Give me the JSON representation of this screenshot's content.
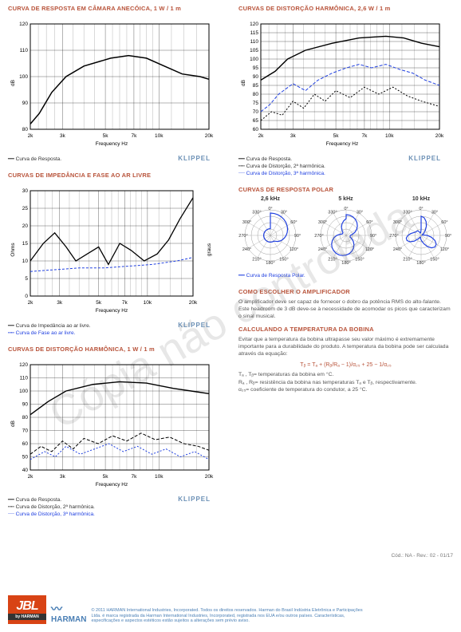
{
  "charts": {
    "c1": {
      "title": "CURVA DE RESPOSTA EM CÂMARA ANECÓICA, 1 W / 1 m",
      "ylabel": "dB",
      "xlabel": "Frequency Hz",
      "ymin": 80,
      "ymax": 120,
      "ystep": 10,
      "xticks": [
        "2k",
        "3k",
        "5k",
        "7k",
        "10k",
        "20k"
      ],
      "legend": [
        "Curva de Resposta."
      ],
      "brand": "KLIPPEL",
      "series": [
        {
          "color": "#000",
          "width": 1.5,
          "pts": [
            [
              0,
              82
            ],
            [
              5,
              86
            ],
            [
              12,
              94
            ],
            [
              20,
              100
            ],
            [
              30,
              104
            ],
            [
              45,
              107
            ],
            [
              55,
              108
            ],
            [
              65,
              107
            ],
            [
              75,
              104
            ],
            [
              85,
              101
            ],
            [
              95,
              100
            ],
            [
              100,
              99
            ]
          ]
        }
      ]
    },
    "c2": {
      "title": "CURVAS DE DISTORÇÃO HARMÔNICA, 2,6 W / 1 m",
      "ylabel": "dB",
      "xlabel": "Frequency Hz",
      "ymin": 60,
      "ymax": 120,
      "ystep": 5,
      "xticks": [
        "2k",
        "3k",
        "5k",
        "7k",
        "10k",
        "20k"
      ],
      "legend": [
        "Curva de Resposta.",
        "Curva de Distorção, 2ª harmônica.",
        "Curva de Distorção, 3ª harmônica."
      ],
      "brand": "KLIPPEL",
      "series": [
        {
          "color": "#000",
          "width": 1.4,
          "pts": [
            [
              0,
              88
            ],
            [
              8,
              93
            ],
            [
              15,
              100
            ],
            [
              25,
              105
            ],
            [
              40,
              109
            ],
            [
              55,
              112
            ],
            [
              70,
              113
            ],
            [
              80,
              112
            ],
            [
              90,
              109
            ],
            [
              100,
              107
            ]
          ]
        },
        {
          "color": "#2040e0",
          "width": 1,
          "dash": "4,2",
          "pts": [
            [
              0,
              70
            ],
            [
              5,
              74
            ],
            [
              10,
              80
            ],
            [
              18,
              86
            ],
            [
              25,
              82
            ],
            [
              32,
              88
            ],
            [
              40,
              92
            ],
            [
              48,
              95
            ],
            [
              55,
              97
            ],
            [
              62,
              95
            ],
            [
              70,
              97
            ],
            [
              78,
              94
            ],
            [
              85,
              92
            ],
            [
              92,
              88
            ],
            [
              100,
              85
            ]
          ]
        },
        {
          "color": "#000",
          "width": 1,
          "dash": "2,2",
          "pts": [
            [
              0,
              65
            ],
            [
              6,
              70
            ],
            [
              12,
              68
            ],
            [
              18,
              76
            ],
            [
              24,
              72
            ],
            [
              30,
              80
            ],
            [
              36,
              76
            ],
            [
              42,
              82
            ],
            [
              50,
              78
            ],
            [
              58,
              84
            ],
            [
              66,
              80
            ],
            [
              74,
              84
            ],
            [
              82,
              79
            ],
            [
              90,
              76
            ],
            [
              100,
              73
            ]
          ]
        }
      ]
    },
    "c3": {
      "title": "CURVAS DE IMPEDÂNCIA E FASE AO AR LIVRE",
      "ylabel": "Ohms",
      "ylabel2": "graus",
      "xlabel": "Frequency Hz",
      "ymin": 0,
      "ymax": 30,
      "ystep": 5,
      "y2min": -20,
      "y2max": 20,
      "xticks": [
        "2k",
        "3k",
        "5k",
        "7k",
        "10k",
        "20k"
      ],
      "legend": [
        "Curva de Impedância ao ar livre.",
        "Curva de Fase ao ar livre."
      ],
      "brand": "KLIPPEL",
      "series": [
        {
          "color": "#000",
          "width": 1.3,
          "pts": [
            [
              0,
              10
            ],
            [
              8,
              15
            ],
            [
              15,
              18
            ],
            [
              22,
              14
            ],
            [
              28,
              10
            ],
            [
              35,
              12
            ],
            [
              42,
              14
            ],
            [
              48,
              9
            ],
            [
              55,
              15
            ],
            [
              62,
              13
            ],
            [
              70,
              10
            ],
            [
              78,
              12
            ],
            [
              85,
              16
            ],
            [
              92,
              22
            ],
            [
              100,
              28
            ]
          ]
        },
        {
          "color": "#2040e0",
          "width": 1,
          "dash": "3,2",
          "pts": [
            [
              0,
              7
            ],
            [
              15,
              7.5
            ],
            [
              30,
              8
            ],
            [
              45,
              8
            ],
            [
              60,
              8.5
            ],
            [
              75,
              9
            ],
            [
              90,
              10
            ],
            [
              100,
              11
            ]
          ]
        }
      ]
    },
    "c4": {
      "title": "CURVAS DE DISTORÇÃO HARMÔNICA, 1 W / 1 m",
      "ylabel": "dB",
      "xlabel": "Frequency Hz",
      "ymin": 40,
      "ymax": 120,
      "ystep": 10,
      "xticks": [
        "2k",
        "3k",
        "5k",
        "7k",
        "10k",
        "20k"
      ],
      "legend": [
        "Curva de Resposta.",
        "Curva de Distorção, 2ª harmônica.",
        "Curva de Distorção, 3ª harmônica."
      ],
      "brand": "KLIPPEL",
      "series": [
        {
          "color": "#000",
          "width": 1.4,
          "pts": [
            [
              0,
              82
            ],
            [
              10,
              92
            ],
            [
              20,
              100
            ],
            [
              35,
              105
            ],
            [
              50,
              107
            ],
            [
              65,
              106
            ],
            [
              80,
              102
            ],
            [
              90,
              100
            ],
            [
              100,
              98
            ]
          ]
        },
        {
          "color": "#000",
          "width": 1,
          "dash": "4,2",
          "pts": [
            [
              0,
              52
            ],
            [
              6,
              58
            ],
            [
              12,
              54
            ],
            [
              18,
              62
            ],
            [
              24,
              56
            ],
            [
              30,
              64
            ],
            [
              38,
              60
            ],
            [
              46,
              66
            ],
            [
              54,
              62
            ],
            [
              62,
              68
            ],
            [
              70,
              63
            ],
            [
              78,
              65
            ],
            [
              86,
              60
            ],
            [
              94,
              58
            ],
            [
              100,
              55
            ]
          ]
        },
        {
          "color": "#2040e0",
          "width": 1,
          "dash": "2,2",
          "pts": [
            [
              0,
              48
            ],
            [
              8,
              54
            ],
            [
              14,
              50
            ],
            [
              20,
              58
            ],
            [
              28,
              52
            ],
            [
              36,
              56
            ],
            [
              44,
              60
            ],
            [
              52,
              54
            ],
            [
              60,
              58
            ],
            [
              68,
              52
            ],
            [
              76,
              56
            ],
            [
              84,
              50
            ],
            [
              92,
              54
            ],
            [
              100,
              48
            ]
          ]
        }
      ]
    }
  },
  "polar": {
    "title": "CURVAS DE RESPOSTA POLAR",
    "freqs": [
      "2,6 kHz",
      "5 kHz",
      "10 kHz"
    ],
    "legend": "Curva de Resposta Polar.",
    "angles": [
      "0°",
      "30°",
      "60°",
      "90°",
      "120°",
      "150°",
      "180°",
      "210°",
      "240°",
      "270°",
      "300°",
      "330°"
    ]
  },
  "sec_amp": {
    "title": "COMO ESCOLHER O AMPLIFICADOR",
    "text": "O amplificador deve ser capaz de fornecer o dobro da potência RMS do alto-falante. Este headroom de 3 dB deve-se à necessidade de acomodar os picos que caracterizam o sinal musical."
  },
  "sec_temp": {
    "title": "CALCULANDO A TEMPERATURA DA BOBINA",
    "text": "Evitar que a temperatura da bobina ultrapasse seu valor máximo é extremamente importante para a durabilidade do produto. A temperatura da bobina pode ser calculada através da equação:",
    "formula": "Tᵦ = Tₐ + (Rᵦ/Rₐ − 1)/α₂₅ + 25 − 1/α₂₅",
    "vars": [
      "Tₐ , Tᵦ= temperaturas da bobina em °C.",
      "Rₐ , Rᵦ= resistência da bobina nas temperaturas Tₐ e Tᵦ, respectivamente.",
      "α₂₅=  coeficiente de temperatura do condutor, a 25 °C."
    ]
  },
  "footer": {
    "c1": "© 2011 HARMAN International Industries, Incorporated. Todos os direitos reservados. Harman do Brasil Indústria Eletrônica e Participações",
    "c2": "Ltda. é marca registrada da Harman International Industries, Incorporated, registrada nos EUA e/ou outros países. Características,",
    "c3": "especificações e aspectos estéticos estão sujeitos a alterações sem prévio aviso.",
    "code": "Cód.: NA - Rev.: 02 - 01/17",
    "jbl": "JBL",
    "by": "by HARMAN",
    "harman": "HARMAN"
  },
  "watermark": "Cópia não controlada"
}
